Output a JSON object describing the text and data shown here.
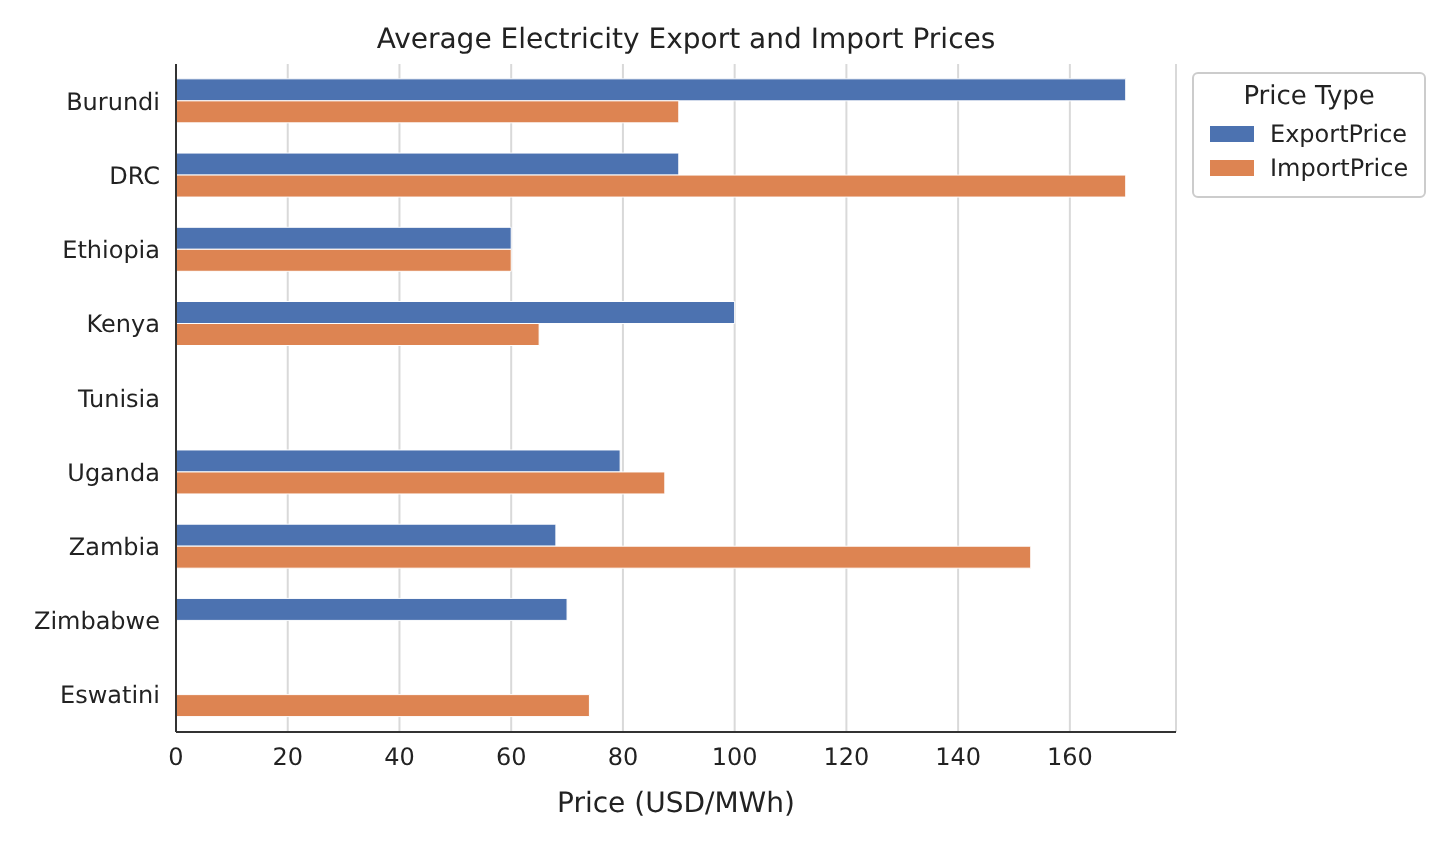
{
  "chart_data": {
    "type": "bar",
    "orientation": "horizontal",
    "title": "Average Electricity Export and Import Prices",
    "xlabel": "Price (USD/MWh)",
    "legend_title": "Price Type",
    "categories": [
      "Burundi",
      "DRC",
      "Ethiopia",
      "Kenya",
      "Tunisia",
      "Uganda",
      "Zambia",
      "Zimbabwe",
      "Eswatini"
    ],
    "series": [
      {
        "name": "ExportPrice",
        "color": "#4c72b0",
        "values": [
          170,
          90,
          60,
          100,
          null,
          79.5,
          68,
          70,
          null
        ]
      },
      {
        "name": "ImportPrice",
        "color": "#dd8452",
        "values": [
          90,
          170,
          60,
          65,
          null,
          87.5,
          153,
          null,
          74
        ]
      }
    ],
    "xlim": [
      0,
      179
    ],
    "xticks": [
      0,
      20,
      40,
      60,
      80,
      100,
      120,
      140,
      160
    ],
    "grid": "x",
    "legend": "top right"
  }
}
